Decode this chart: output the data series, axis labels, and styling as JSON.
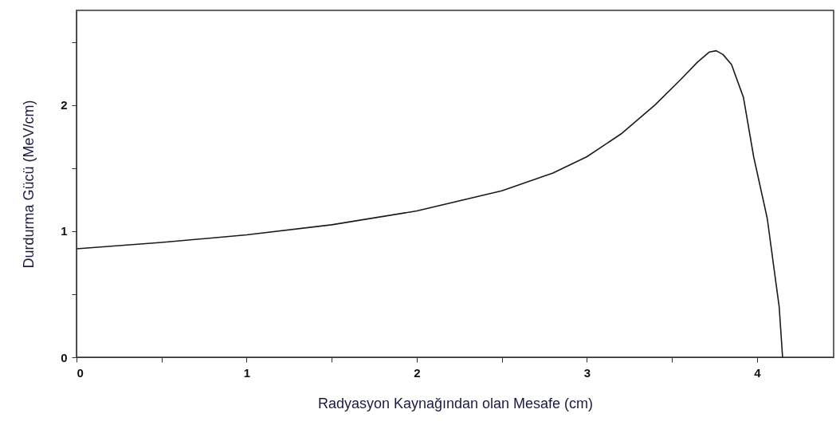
{
  "chart_data": {
    "type": "line",
    "xlabel": "Radyasyon Kaynağından olan Mesafe (cm)",
    "ylabel": "Durdurma Gücü (MeV/cm)",
    "xlim": [
      0,
      4.45
    ],
    "xticks": [
      0,
      {
        "value": 0.5,
        "label": null
      },
      1,
      {
        "value": 1.5,
        "label": null
      },
      2,
      {
        "value": 2.5,
        "label": null
      },
      3,
      {
        "value": 3.5,
        "label": null
      },
      4
    ],
    "ylim": [
      0,
      2.75
    ],
    "yticks": [
      0,
      {
        "value": 0.5,
        "label": null
      },
      1,
      {
        "value": 1.5,
        "label": null
      },
      2,
      {
        "value": 2.5,
        "label": null
      }
    ],
    "grid": false,
    "marker": "none",
    "line_style": "solid",
    "series": [
      {
        "color": "#1a1a1a",
        "x": [
          0,
          0.5,
          1,
          1.5,
          2,
          2.5,
          2.8,
          3,
          3.2,
          3.4,
          3.55,
          3.65,
          3.72,
          3.76,
          3.8,
          3.85,
          3.92,
          3.98,
          4.06,
          4.1,
          4.13,
          4.15
        ],
        "values": [
          0.86,
          0.91,
          0.97,
          1.05,
          1.16,
          1.32,
          1.46,
          1.59,
          1.77,
          2.0,
          2.2,
          2.34,
          2.42,
          2.43,
          2.4,
          2.32,
          2.06,
          1.59,
          1.1,
          0.7,
          0.4,
          0
        ]
      }
    ]
  }
}
